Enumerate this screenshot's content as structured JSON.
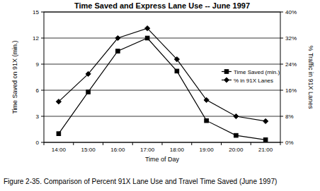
{
  "chart_data": {
    "type": "line",
    "title": "Time Saved and Express Lane Use -- June 1997",
    "caption": "Figure 2-35. Comparison of Percent 91X Lane Use and Travel Time Saved (June 1997)",
    "x_label": "Time of Day",
    "y_label": "Time Saved on 91X (min.)",
    "y2_label": "% Traffic in 91X Lanes",
    "categories": [
      "14:00",
      "15:00",
      "16:00",
      "17:00",
      "18:00",
      "19:00",
      "20:00",
      "21:00"
    ],
    "series": [
      {
        "name": "Time Saved (min.)",
        "color": "#000000",
        "marker": "square",
        "line_style": "solid",
        "values": [
          1.0,
          5.8,
          10.5,
          12.0,
          8.2,
          2.5,
          0.8,
          0.3
        ]
      },
      {
        "name": "% in 91X Lanes",
        "color": "#000000",
        "marker": "diamond",
        "line_style": "solid",
        "axis": "y2",
        "values": [
          12.5,
          21,
          32,
          35,
          25.5,
          13,
          8,
          6.5
        ]
      }
    ],
    "ylim": [
      0,
      15
    ],
    "yticks": [
      0,
      3,
      6,
      9,
      12,
      15
    ],
    "y2lim": [
      0,
      40
    ],
    "y2ticks": [
      {
        "value": 0,
        "label": "0%"
      },
      {
        "value": 8,
        "label": "8%"
      },
      {
        "value": 16,
        "label": "16%"
      },
      {
        "value": 24,
        "label": "24%"
      },
      {
        "value": 32,
        "label": "32%"
      },
      {
        "value": 40,
        "label": "40%"
      }
    ],
    "grid": true,
    "legend": "right"
  }
}
